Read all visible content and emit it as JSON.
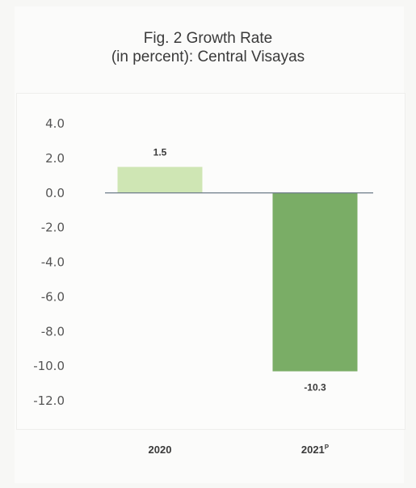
{
  "chart_data": {
    "type": "bar",
    "title_line1": "Fig. 2 Growth Rate",
    "title_line2": "(in percent): Central Visayas",
    "categories": [
      "2020",
      "2021"
    ],
    "category_superscripts": [
      "",
      "P"
    ],
    "values": [
      1.5,
      -10.3
    ],
    "data_labels": [
      "1.5",
      "-10.3"
    ],
    "bar_colors": [
      "#cfe6b4",
      "#7aad66"
    ],
    "ylim": [
      -12.0,
      4.0
    ],
    "yticks": [
      "4.0",
      "2.0",
      "0.0",
      "-2.0",
      "-4.0",
      "-6.0",
      "-8.0",
      "-10.0",
      "-12.0"
    ],
    "grid": false,
    "legend": "none"
  }
}
